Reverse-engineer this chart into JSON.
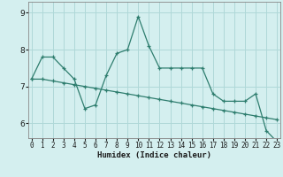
{
  "xlabel": "Humidex (Indice chaleur)",
  "bg_color": "#d4efef",
  "grid_color": "#afd8d8",
  "line_color": "#2e7d6e",
  "x_ticks": [
    0,
    1,
    2,
    3,
    4,
    5,
    6,
    7,
    8,
    9,
    10,
    11,
    12,
    13,
    14,
    15,
    16,
    17,
    18,
    19,
    20,
    21,
    22,
    23
  ],
  "y_ticks": [
    6,
    7,
    8,
    9
  ],
  "ylim": [
    5.6,
    9.3
  ],
  "xlim": [
    -0.3,
    23.3
  ],
  "series1": [
    7.2,
    7.8,
    7.8,
    7.5,
    7.2,
    6.4,
    6.5,
    7.3,
    7.9,
    8.0,
    8.9,
    8.1,
    7.5,
    7.5,
    7.5,
    7.5,
    7.5,
    6.8,
    6.6,
    6.6,
    6.6,
    6.8,
    5.8,
    5.5
  ],
  "series2": [
    7.2,
    7.2,
    7.15,
    7.1,
    7.05,
    7.0,
    6.95,
    6.9,
    6.85,
    6.8,
    6.75,
    6.7,
    6.65,
    6.6,
    6.55,
    6.5,
    6.45,
    6.4,
    6.35,
    6.3,
    6.25,
    6.2,
    6.15,
    6.1
  ]
}
